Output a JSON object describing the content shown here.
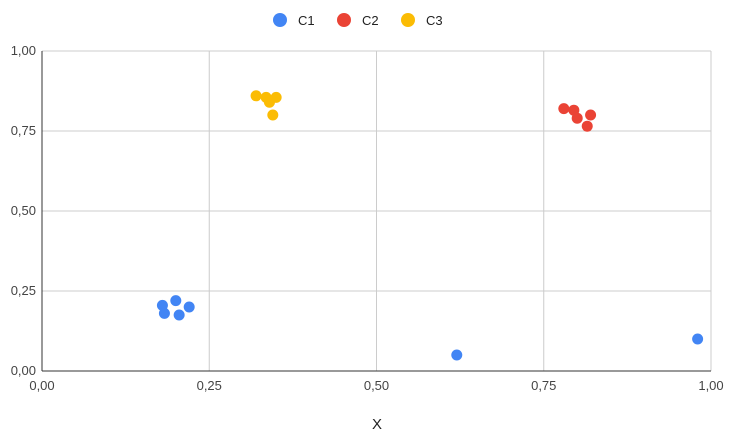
{
  "chart_data": {
    "type": "scatter",
    "title": "",
    "xlabel": "X",
    "ylabel": "",
    "xlim": [
      0,
      1
    ],
    "ylim": [
      0,
      1
    ],
    "xticks": [
      "0,00",
      "0,25",
      "0,50",
      "0,75",
      "1,00"
    ],
    "yticks": [
      "0,00",
      "0,25",
      "0,50",
      "0,75",
      "1,00"
    ],
    "xtick_values": [
      0,
      0.25,
      0.5,
      0.75,
      1.0
    ],
    "ytick_values": [
      0,
      0.25,
      0.5,
      0.75,
      1.0
    ],
    "grid": true,
    "legend_position": "top-center",
    "series": [
      {
        "name": "C1",
        "color": "#4285f4",
        "points": [
          {
            "x": 0.18,
            "y": 0.205
          },
          {
            "x": 0.2,
            "y": 0.22
          },
          {
            "x": 0.22,
            "y": 0.2
          },
          {
            "x": 0.183,
            "y": 0.18
          },
          {
            "x": 0.205,
            "y": 0.175
          },
          {
            "x": 0.62,
            "y": 0.05
          },
          {
            "x": 0.98,
            "y": 0.1
          }
        ]
      },
      {
        "name": "C2",
        "color": "#ea4335",
        "points": [
          {
            "x": 0.78,
            "y": 0.82
          },
          {
            "x": 0.795,
            "y": 0.815
          },
          {
            "x": 0.8,
            "y": 0.79
          },
          {
            "x": 0.82,
            "y": 0.8
          },
          {
            "x": 0.815,
            "y": 0.765
          }
        ]
      },
      {
        "name": "C3",
        "color": "#fbbc04",
        "points": [
          {
            "x": 0.32,
            "y": 0.86
          },
          {
            "x": 0.335,
            "y": 0.855
          },
          {
            "x": 0.35,
            "y": 0.855
          },
          {
            "x": 0.34,
            "y": 0.84
          },
          {
            "x": 0.345,
            "y": 0.8
          }
        ]
      }
    ]
  }
}
